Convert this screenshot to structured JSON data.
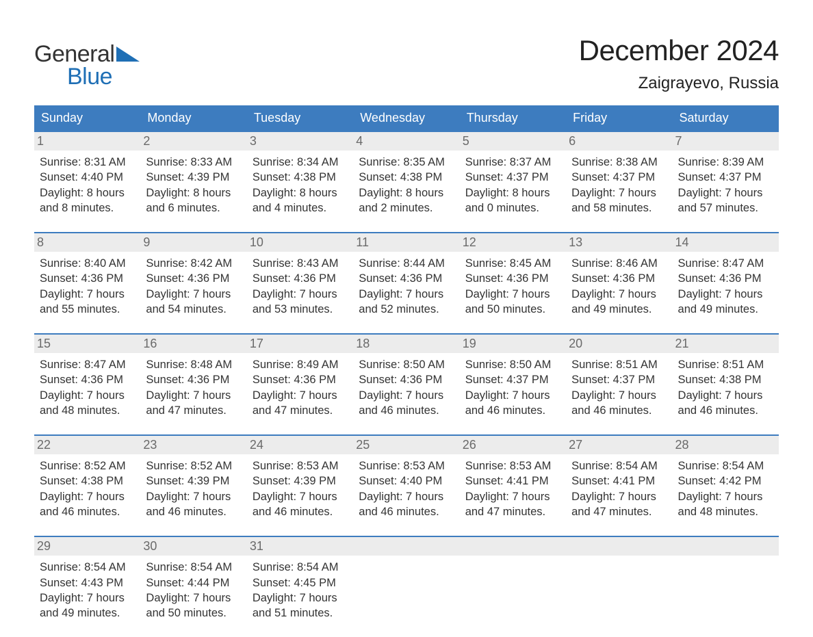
{
  "logo": {
    "text1": "General",
    "text2": "Blue",
    "tri_color": "#1f6fb5",
    "text1_color": "#333333"
  },
  "title": "December 2024",
  "location": "Zaigrayevo, Russia",
  "colors": {
    "header_bg": "#3d7cbf",
    "header_text": "#ffffff",
    "week_border": "#3d7cbf",
    "daynum_bg": "#ececec",
    "daynum_text": "#6a6a6a",
    "body_text": "#333333",
    "page_bg": "#ffffff"
  },
  "typography": {
    "title_fontsize": 42,
    "location_fontsize": 24,
    "dayheader_fontsize": 18,
    "daynum_fontsize": 18,
    "body_fontsize": 16.5
  },
  "day_headers": [
    "Sunday",
    "Monday",
    "Tuesday",
    "Wednesday",
    "Thursday",
    "Friday",
    "Saturday"
  ],
  "weeks": [
    [
      {
        "num": "1",
        "sunrise": "8:31 AM",
        "sunset": "4:40 PM",
        "daylight_h": "8",
        "daylight_m": "8"
      },
      {
        "num": "2",
        "sunrise": "8:33 AM",
        "sunset": "4:39 PM",
        "daylight_h": "8",
        "daylight_m": "6"
      },
      {
        "num": "3",
        "sunrise": "8:34 AM",
        "sunset": "4:38 PM",
        "daylight_h": "8",
        "daylight_m": "4"
      },
      {
        "num": "4",
        "sunrise": "8:35 AM",
        "sunset": "4:38 PM",
        "daylight_h": "8",
        "daylight_m": "2"
      },
      {
        "num": "5",
        "sunrise": "8:37 AM",
        "sunset": "4:37 PM",
        "daylight_h": "8",
        "daylight_m": "0"
      },
      {
        "num": "6",
        "sunrise": "8:38 AM",
        "sunset": "4:37 PM",
        "daylight_h": "7",
        "daylight_m": "58"
      },
      {
        "num": "7",
        "sunrise": "8:39 AM",
        "sunset": "4:37 PM",
        "daylight_h": "7",
        "daylight_m": "57"
      }
    ],
    [
      {
        "num": "8",
        "sunrise": "8:40 AM",
        "sunset": "4:36 PM",
        "daylight_h": "7",
        "daylight_m": "55"
      },
      {
        "num": "9",
        "sunrise": "8:42 AM",
        "sunset": "4:36 PM",
        "daylight_h": "7",
        "daylight_m": "54"
      },
      {
        "num": "10",
        "sunrise": "8:43 AM",
        "sunset": "4:36 PM",
        "daylight_h": "7",
        "daylight_m": "53"
      },
      {
        "num": "11",
        "sunrise": "8:44 AM",
        "sunset": "4:36 PM",
        "daylight_h": "7",
        "daylight_m": "52"
      },
      {
        "num": "12",
        "sunrise": "8:45 AM",
        "sunset": "4:36 PM",
        "daylight_h": "7",
        "daylight_m": "50"
      },
      {
        "num": "13",
        "sunrise": "8:46 AM",
        "sunset": "4:36 PM",
        "daylight_h": "7",
        "daylight_m": "49"
      },
      {
        "num": "14",
        "sunrise": "8:47 AM",
        "sunset": "4:36 PM",
        "daylight_h": "7",
        "daylight_m": "49"
      }
    ],
    [
      {
        "num": "15",
        "sunrise": "8:47 AM",
        "sunset": "4:36 PM",
        "daylight_h": "7",
        "daylight_m": "48"
      },
      {
        "num": "16",
        "sunrise": "8:48 AM",
        "sunset": "4:36 PM",
        "daylight_h": "7",
        "daylight_m": "47"
      },
      {
        "num": "17",
        "sunrise": "8:49 AM",
        "sunset": "4:36 PM",
        "daylight_h": "7",
        "daylight_m": "47"
      },
      {
        "num": "18",
        "sunrise": "8:50 AM",
        "sunset": "4:36 PM",
        "daylight_h": "7",
        "daylight_m": "46"
      },
      {
        "num": "19",
        "sunrise": "8:50 AM",
        "sunset": "4:37 PM",
        "daylight_h": "7",
        "daylight_m": "46"
      },
      {
        "num": "20",
        "sunrise": "8:51 AM",
        "sunset": "4:37 PM",
        "daylight_h": "7",
        "daylight_m": "46"
      },
      {
        "num": "21",
        "sunrise": "8:51 AM",
        "sunset": "4:38 PM",
        "daylight_h": "7",
        "daylight_m": "46"
      }
    ],
    [
      {
        "num": "22",
        "sunrise": "8:52 AM",
        "sunset": "4:38 PM",
        "daylight_h": "7",
        "daylight_m": "46"
      },
      {
        "num": "23",
        "sunrise": "8:52 AM",
        "sunset": "4:39 PM",
        "daylight_h": "7",
        "daylight_m": "46"
      },
      {
        "num": "24",
        "sunrise": "8:53 AM",
        "sunset": "4:39 PM",
        "daylight_h": "7",
        "daylight_m": "46"
      },
      {
        "num": "25",
        "sunrise": "8:53 AM",
        "sunset": "4:40 PM",
        "daylight_h": "7",
        "daylight_m": "46"
      },
      {
        "num": "26",
        "sunrise": "8:53 AM",
        "sunset": "4:41 PM",
        "daylight_h": "7",
        "daylight_m": "47"
      },
      {
        "num": "27",
        "sunrise": "8:54 AM",
        "sunset": "4:41 PM",
        "daylight_h": "7",
        "daylight_m": "47"
      },
      {
        "num": "28",
        "sunrise": "8:54 AM",
        "sunset": "4:42 PM",
        "daylight_h": "7",
        "daylight_m": "48"
      }
    ],
    [
      {
        "num": "29",
        "sunrise": "8:54 AM",
        "sunset": "4:43 PM",
        "daylight_h": "7",
        "daylight_m": "49"
      },
      {
        "num": "30",
        "sunrise": "8:54 AM",
        "sunset": "4:44 PM",
        "daylight_h": "7",
        "daylight_m": "50"
      },
      {
        "num": "31",
        "sunrise": "8:54 AM",
        "sunset": "4:45 PM",
        "daylight_h": "7",
        "daylight_m": "51"
      },
      {
        "empty": true
      },
      {
        "empty": true
      },
      {
        "empty": true
      },
      {
        "empty": true
      }
    ]
  ],
  "labels": {
    "sunrise_prefix": "Sunrise: ",
    "sunset_prefix": "Sunset: ",
    "daylight_prefix": "Daylight: ",
    "hours_word": " hours",
    "and_word": "and ",
    "minutes_word": " minutes."
  }
}
